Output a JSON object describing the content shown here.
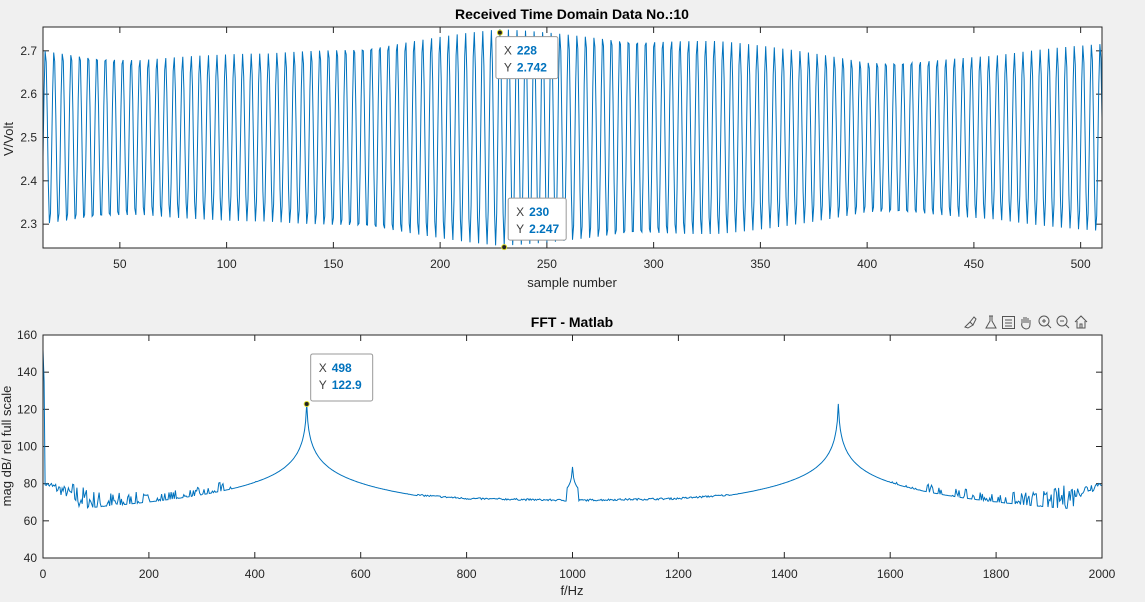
{
  "chart_data": [
    {
      "type": "line",
      "title": "Received Time Domain Data No.:10",
      "xlabel": "sample number",
      "ylabel": "V/Volt",
      "xlim": [
        14,
        510
      ],
      "ylim": [
        2.245,
        2.755
      ],
      "xticks": [
        50,
        100,
        150,
        200,
        250,
        300,
        350,
        400,
        450,
        500
      ],
      "yticks": [
        2.3,
        2.4,
        2.5,
        2.6,
        2.7
      ],
      "ytick_labels": [
        "2.3",
        "2.4",
        "2.5",
        "2.6",
        "2.7"
      ],
      "grid": false,
      "color": "#0072bd",
      "signal": {
        "description": "tone at 500 Hz with amplitude modulation, sampled",
        "offset": 2.5,
        "cycles_per_sample": 0.249,
        "envelope": [
          {
            "x": 14,
            "amp": 0.205
          },
          {
            "x": 60,
            "amp": 0.185
          },
          {
            "x": 120,
            "amp": 0.195
          },
          {
            "x": 228,
            "amp": 0.25
          },
          {
            "x": 330,
            "amp": 0.225
          },
          {
            "x": 400,
            "amp": 0.18
          },
          {
            "x": 460,
            "amp": 0.19
          },
          {
            "x": 510,
            "amp": 0.22
          }
        ]
      },
      "datatips": [
        {
          "x": 228,
          "y": 2.742,
          "x_label": "X",
          "x_text": "228",
          "y_label": "Y",
          "y_text": "2.742"
        },
        {
          "x": 230,
          "y": 2.247,
          "x_label": "X",
          "x_text": "230",
          "y_label": "Y",
          "y_text": "2.247"
        }
      ]
    },
    {
      "type": "line",
      "title": "FFT -  Matlab",
      "xlabel": "f/Hz",
      "ylabel": "mag dB/ rel full scale",
      "xlim": [
        0,
        2000
      ],
      "ylim": [
        40,
        160
      ],
      "xticks": [
        0,
        200,
        400,
        600,
        800,
        1000,
        1200,
        1400,
        1600,
        1800,
        2000
      ],
      "yticks": [
        40,
        60,
        80,
        100,
        120,
        140,
        160
      ],
      "grid": false,
      "color": "#0072bd",
      "spectrum": {
        "description": "magnitude spectrum in dB",
        "dc_value": 152,
        "peaks": [
          {
            "f": 498,
            "db": 122.9
          },
          {
            "f": 1000,
            "db": 89
          },
          {
            "f": 1502,
            "db": 122.9
          }
        ],
        "baseline_points": [
          {
            "f": 5,
            "db": 80
          },
          {
            "f": 100,
            "db": 70
          },
          {
            "f": 200,
            "db": 69
          },
          {
            "f": 300,
            "db": 72
          },
          {
            "f": 400,
            "db": 79
          },
          {
            "f": 600,
            "db": 76
          },
          {
            "f": 800,
            "db": 72
          },
          {
            "f": 1000,
            "db": 71
          },
          {
            "f": 1200,
            "db": 72
          },
          {
            "f": 1400,
            "db": 76
          },
          {
            "f": 1600,
            "db": 79
          },
          {
            "f": 1700,
            "db": 72
          },
          {
            "f": 1800,
            "db": 69
          },
          {
            "f": 1900,
            "db": 70
          },
          {
            "f": 1995,
            "db": 80
          }
        ]
      },
      "datatips": [
        {
          "x": 498,
          "y": 122.9,
          "x_label": "X",
          "x_text": "498",
          "y_label": "Y",
          "y_text": "122.9"
        }
      ]
    }
  ],
  "axes_toolbar": {
    "icons": [
      "brush-icon",
      "data-tip-icon",
      "legend-icon",
      "pan-hand-icon",
      "zoom-in-icon",
      "zoom-out-icon",
      "home-icon"
    ]
  }
}
